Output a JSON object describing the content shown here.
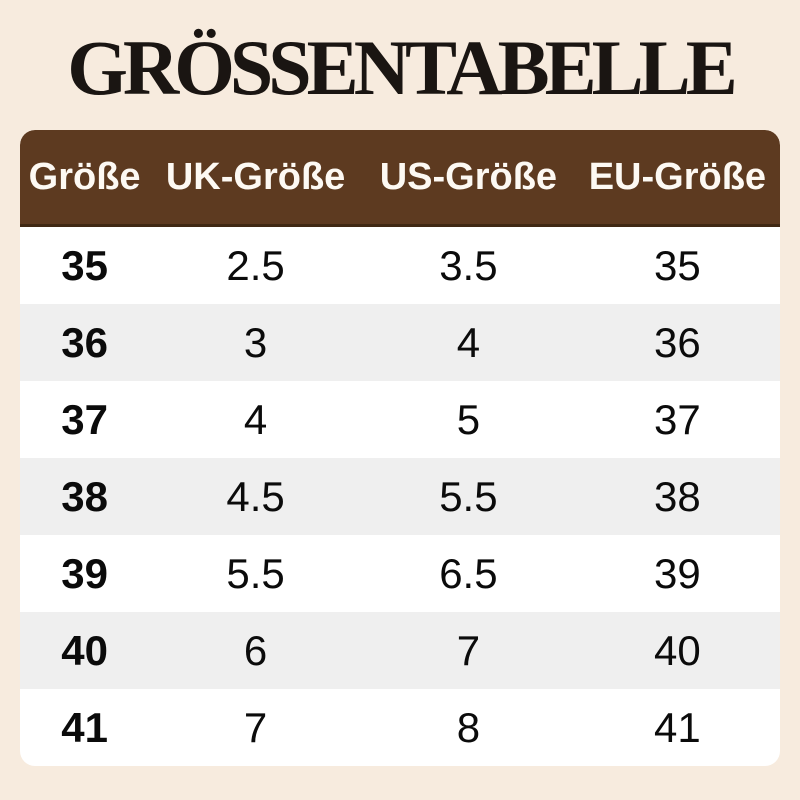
{
  "page": {
    "background_color": "#f7ebde",
    "title": "GRÖSSENTABELLE"
  },
  "table": {
    "header_bg_color": "#5d3a20",
    "header_text_color": "#fdf9f3",
    "row_bg_color": "#ffffff",
    "row_alt_bg_color": "#efefef",
    "columns": [
      "Größe",
      "UK-Größe",
      "US-Größe",
      "EU-Größe"
    ],
    "rows": [
      [
        "35",
        "2.5",
        "3.5",
        "35"
      ],
      [
        "36",
        "3",
        "4",
        "36"
      ],
      [
        "37",
        "4",
        "5",
        "37"
      ],
      [
        "38",
        "4.5",
        "5.5",
        "38"
      ],
      [
        "39",
        "5.5",
        "6.5",
        "39"
      ],
      [
        "40",
        "6",
        "7",
        "40"
      ],
      [
        "41",
        "7",
        "8",
        "41"
      ]
    ]
  },
  "chart_data": {
    "type": "table",
    "title": "GRÖSSENTABELLE",
    "columns": [
      "Größe",
      "UK-Größe",
      "US-Größe",
      "EU-Größe"
    ],
    "rows": [
      [
        "35",
        "2.5",
        "3.5",
        "35"
      ],
      [
        "36",
        "3",
        "4",
        "36"
      ],
      [
        "37",
        "4",
        "5",
        "37"
      ],
      [
        "38",
        "4.5",
        "5.5",
        "38"
      ],
      [
        "39",
        "5.5",
        "6.5",
        "39"
      ],
      [
        "40",
        "6",
        "7",
        "40"
      ],
      [
        "41",
        "7",
        "8",
        "41"
      ]
    ],
    "layout_hints": {
      "header_style": "brown background, white bold text, rounded top corners",
      "row_striping": "white / light-gray alternating starting with white",
      "alignment": "all cells centered",
      "first_column_bold": true
    }
  }
}
